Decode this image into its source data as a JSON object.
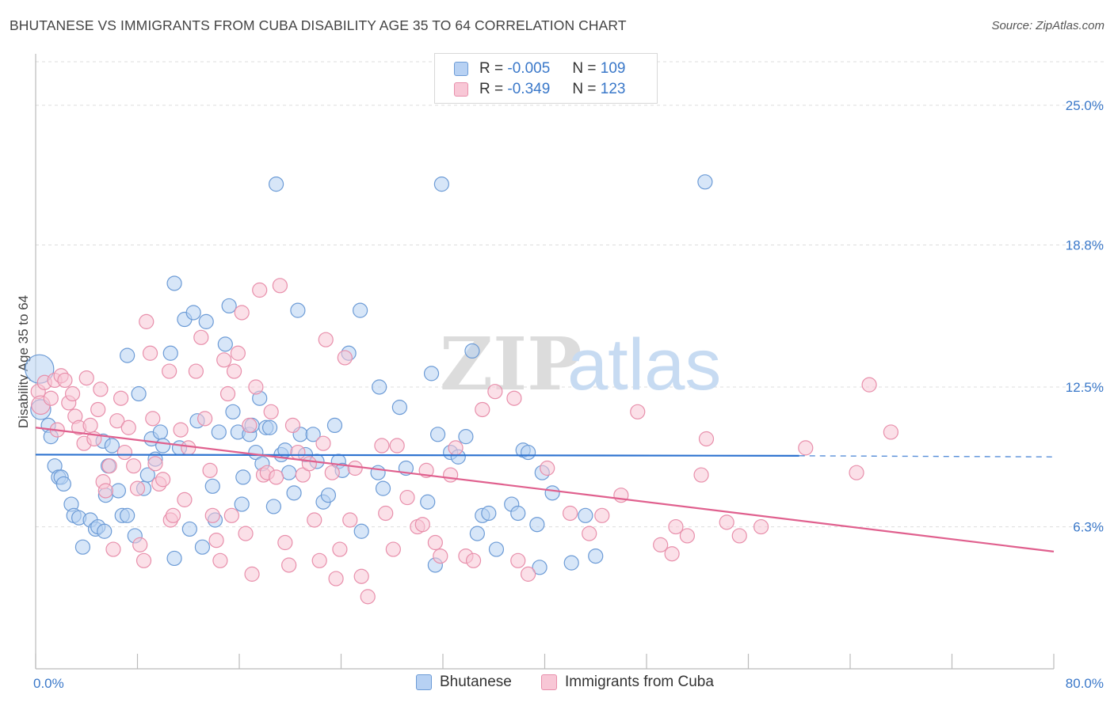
{
  "title": "BHUTANESE VS IMMIGRANTS FROM CUBA DISABILITY AGE 35 TO 64 CORRELATION CHART",
  "source": "Source: ZipAtlas.com",
  "watermark": {
    "zip": "ZIP",
    "atlas": "atlas"
  },
  "legend_top": [
    {
      "r_label": "R =",
      "r_value": "-0.005",
      "n_label": "N =",
      "n_value": "109"
    },
    {
      "r_label": "R =",
      "r_value": "-0.349",
      "n_label": "N =",
      "n_value": "123"
    }
  ],
  "legend_bottom": [
    {
      "label": "Bhutanese"
    },
    {
      "label": "Immigrants from Cuba"
    }
  ],
  "colors": {
    "blue_fill": "#b7d1f3",
    "blue_stroke": "#6c9bd6",
    "blue_line": "#2e73d0",
    "pink_fill": "#f8c7d6",
    "pink_stroke": "#e88fab",
    "pink_line": "#e0608e",
    "axis_text": "#3a78c9",
    "grid": "#dddddd"
  },
  "chart_data": {
    "type": "scatter",
    "title": "BHUTANESE VS IMMIGRANTS FROM CUBA DISABILITY AGE 35 TO 64 CORRELATION CHART",
    "xlabel": "",
    "ylabel": "Disability Age 35 to 64",
    "xlim": [
      0,
      80
    ],
    "ylim": [
      0,
      27
    ],
    "x_tick_labels": [
      "0.0%",
      "80.0%"
    ],
    "y_ticks": [
      6.3,
      12.5,
      18.8,
      25.0
    ],
    "y_tick_labels": [
      "6.3%",
      "12.5%",
      "18.8%",
      "25.0%"
    ],
    "grid": true,
    "legend_position": "top-center",
    "series": [
      {
        "name": "Bhutanese",
        "trendline": {
          "x": [
            0,
            60
          ],
          "y": [
            9.5,
            9.45
          ],
          "dashed_to": [
            80,
            9.4
          ]
        },
        "points": [
          {
            "x": 0.3,
            "y": 13.3,
            "s": 2.0
          },
          {
            "x": 0.4,
            "y": 11.5,
            "s": 1.4
          },
          {
            "x": 1.0,
            "y": 10.8,
            "s": 1.0
          },
          {
            "x": 1.2,
            "y": 10.3,
            "s": 1.0
          },
          {
            "x": 1.5,
            "y": 9.0
          },
          {
            "x": 1.8,
            "y": 8.5
          },
          {
            "x": 2.0,
            "y": 8.5
          },
          {
            "x": 2.2,
            "y": 8.2
          },
          {
            "x": 2.8,
            "y": 7.3
          },
          {
            "x": 3.0,
            "y": 6.8
          },
          {
            "x": 3.4,
            "y": 6.7
          },
          {
            "x": 3.7,
            "y": 5.4
          },
          {
            "x": 4.3,
            "y": 6.6
          },
          {
            "x": 4.7,
            "y": 6.2
          },
          {
            "x": 4.9,
            "y": 6.3
          },
          {
            "x": 5.3,
            "y": 10.1
          },
          {
            "x": 5.4,
            "y": 6.1
          },
          {
            "x": 5.5,
            "y": 7.7
          },
          {
            "x": 5.7,
            "y": 9.0
          },
          {
            "x": 6.0,
            "y": 9.9
          },
          {
            "x": 6.5,
            "y": 7.9
          },
          {
            "x": 6.8,
            "y": 6.8
          },
          {
            "x": 7.2,
            "y": 6.8
          },
          {
            "x": 7.2,
            "y": 13.9
          },
          {
            "x": 7.8,
            "y": 5.9
          },
          {
            "x": 8.1,
            "y": 12.2
          },
          {
            "x": 8.5,
            "y": 8.0
          },
          {
            "x": 8.8,
            "y": 8.6
          },
          {
            "x": 9.1,
            "y": 10.2
          },
          {
            "x": 9.4,
            "y": 9.3
          },
          {
            "x": 9.8,
            "y": 10.5
          },
          {
            "x": 10.0,
            "y": 9.9
          },
          {
            "x": 10.6,
            "y": 14.0
          },
          {
            "x": 10.9,
            "y": 17.1
          },
          {
            "x": 10.9,
            "y": 4.9
          },
          {
            "x": 11.3,
            "y": 9.8
          },
          {
            "x": 11.7,
            "y": 15.5
          },
          {
            "x": 12.1,
            "y": 6.2
          },
          {
            "x": 12.4,
            "y": 15.8
          },
          {
            "x": 12.7,
            "y": 11.0
          },
          {
            "x": 13.1,
            "y": 5.4
          },
          {
            "x": 13.4,
            "y": 15.4
          },
          {
            "x": 13.9,
            "y": 8.1
          },
          {
            "x": 14.1,
            "y": 6.6
          },
          {
            "x": 14.4,
            "y": 10.5
          },
          {
            "x": 14.9,
            "y": 14.4
          },
          {
            "x": 15.2,
            "y": 16.1
          },
          {
            "x": 15.5,
            "y": 11.4
          },
          {
            "x": 15.9,
            "y": 10.5
          },
          {
            "x": 16.2,
            "y": 7.3
          },
          {
            "x": 16.3,
            "y": 8.5
          },
          {
            "x": 16.8,
            "y": 10.4
          },
          {
            "x": 17.0,
            "y": 10.8
          },
          {
            "x": 17.3,
            "y": 9.6
          },
          {
            "x": 17.6,
            "y": 12.0
          },
          {
            "x": 17.8,
            "y": 9.1
          },
          {
            "x": 18.1,
            "y": 10.7
          },
          {
            "x": 18.4,
            "y": 10.7
          },
          {
            "x": 18.7,
            "y": 7.2
          },
          {
            "x": 18.9,
            "y": 21.5
          },
          {
            "x": 19.3,
            "y": 9.5
          },
          {
            "x": 19.6,
            "y": 9.7
          },
          {
            "x": 19.9,
            "y": 8.7
          },
          {
            "x": 20.3,
            "y": 7.8
          },
          {
            "x": 20.6,
            "y": 15.9
          },
          {
            "x": 20.8,
            "y": 10.4
          },
          {
            "x": 21.2,
            "y": 9.5
          },
          {
            "x": 21.8,
            "y": 10.4
          },
          {
            "x": 22.1,
            "y": 9.2
          },
          {
            "x": 22.6,
            "y": 7.4
          },
          {
            "x": 23.0,
            "y": 7.7
          },
          {
            "x": 23.5,
            "y": 10.8
          },
          {
            "x": 23.8,
            "y": 9.2
          },
          {
            "x": 24.1,
            "y": 8.8
          },
          {
            "x": 24.6,
            "y": 14.0
          },
          {
            "x": 25.5,
            "y": 15.9
          },
          {
            "x": 25.6,
            "y": 6.1
          },
          {
            "x": 26.9,
            "y": 8.7
          },
          {
            "x": 27.3,
            "y": 8.0
          },
          {
            "x": 27.0,
            "y": 12.5
          },
          {
            "x": 28.6,
            "y": 11.6
          },
          {
            "x": 29.1,
            "y": 8.9
          },
          {
            "x": 30.8,
            "y": 7.4
          },
          {
            "x": 31.1,
            "y": 13.1
          },
          {
            "x": 31.4,
            "y": 4.6
          },
          {
            "x": 31.6,
            "y": 10.4
          },
          {
            "x": 31.9,
            "y": 21.5
          },
          {
            "x": 32.6,
            "y": 9.6
          },
          {
            "x": 33.2,
            "y": 9.4
          },
          {
            "x": 33.8,
            "y": 10.3
          },
          {
            "x": 34.3,
            "y": 14.1
          },
          {
            "x": 34.7,
            "y": 6.0
          },
          {
            "x": 35.1,
            "y": 6.8
          },
          {
            "x": 35.6,
            "y": 6.9
          },
          {
            "x": 36.2,
            "y": 5.3
          },
          {
            "x": 37.4,
            "y": 7.3
          },
          {
            "x": 37.9,
            "y": 6.9
          },
          {
            "x": 38.3,
            "y": 9.7
          },
          {
            "x": 38.7,
            "y": 9.6
          },
          {
            "x": 39.4,
            "y": 6.4
          },
          {
            "x": 39.6,
            "y": 4.5
          },
          {
            "x": 39.8,
            "y": 8.7
          },
          {
            "x": 40.6,
            "y": 7.8
          },
          {
            "x": 42.1,
            "y": 4.7
          },
          {
            "x": 43.2,
            "y": 6.8
          },
          {
            "x": 44.0,
            "y": 5.0
          },
          {
            "x": 52.6,
            "y": 21.6
          }
        ]
      },
      {
        "name": "Immigrants from Cuba",
        "trendline": {
          "x": [
            0,
            80
          ],
          "y": [
            10.7,
            5.2
          ]
        },
        "points": [
          {
            "x": 0.2,
            "y": 12.3
          },
          {
            "x": 0.4,
            "y": 11.7,
            "s": 1.3
          },
          {
            "x": 0.7,
            "y": 12.7
          },
          {
            "x": 1.2,
            "y": 12.0
          },
          {
            "x": 1.5,
            "y": 12.8
          },
          {
            "x": 1.7,
            "y": 10.6
          },
          {
            "x": 2.0,
            "y": 13.0
          },
          {
            "x": 2.3,
            "y": 12.8
          },
          {
            "x": 2.6,
            "y": 11.8
          },
          {
            "x": 2.9,
            "y": 12.2
          },
          {
            "x": 3.1,
            "y": 11.2
          },
          {
            "x": 3.4,
            "y": 10.7
          },
          {
            "x": 3.8,
            "y": 10.0
          },
          {
            "x": 4.0,
            "y": 12.9
          },
          {
            "x": 4.3,
            "y": 10.8
          },
          {
            "x": 4.6,
            "y": 10.2
          },
          {
            "x": 4.9,
            "y": 11.5
          },
          {
            "x": 5.1,
            "y": 12.4
          },
          {
            "x": 5.3,
            "y": 8.3
          },
          {
            "x": 5.5,
            "y": 7.9
          },
          {
            "x": 5.8,
            "y": 9.0
          },
          {
            "x": 6.1,
            "y": 5.3
          },
          {
            "x": 6.4,
            "y": 11.0
          },
          {
            "x": 6.7,
            "y": 12.0
          },
          {
            "x": 7.0,
            "y": 9.6
          },
          {
            "x": 7.3,
            "y": 10.7
          },
          {
            "x": 7.7,
            "y": 9.0
          },
          {
            "x": 8.0,
            "y": 8.0
          },
          {
            "x": 8.2,
            "y": 5.5
          },
          {
            "x": 8.5,
            "y": 4.8
          },
          {
            "x": 8.7,
            "y": 15.4
          },
          {
            "x": 9.0,
            "y": 14.0
          },
          {
            "x": 9.2,
            "y": 11.1
          },
          {
            "x": 9.4,
            "y": 9.1
          },
          {
            "x": 9.7,
            "y": 8.2
          },
          {
            "x": 10.0,
            "y": 8.4
          },
          {
            "x": 10.5,
            "y": 13.2
          },
          {
            "x": 10.6,
            "y": 6.6
          },
          {
            "x": 10.8,
            "y": 6.8
          },
          {
            "x": 11.4,
            "y": 10.6
          },
          {
            "x": 11.7,
            "y": 7.5
          },
          {
            "x": 12.0,
            "y": 9.8
          },
          {
            "x": 12.6,
            "y": 13.2
          },
          {
            "x": 13.0,
            "y": 14.7
          },
          {
            "x": 13.3,
            "y": 11.1
          },
          {
            "x": 13.7,
            "y": 8.8
          },
          {
            "x": 13.9,
            "y": 6.8
          },
          {
            "x": 14.2,
            "y": 5.7
          },
          {
            "x": 14.5,
            "y": 4.8
          },
          {
            "x": 14.8,
            "y": 13.7
          },
          {
            "x": 15.1,
            "y": 12.2
          },
          {
            "x": 15.4,
            "y": 6.8
          },
          {
            "x": 15.6,
            "y": 13.2
          },
          {
            "x": 15.9,
            "y": 14.0
          },
          {
            "x": 16.2,
            "y": 15.8
          },
          {
            "x": 16.5,
            "y": 6.0
          },
          {
            "x": 16.8,
            "y": 10.8
          },
          {
            "x": 17.0,
            "y": 4.2
          },
          {
            "x": 17.3,
            "y": 12.5
          },
          {
            "x": 17.6,
            "y": 16.8
          },
          {
            "x": 17.9,
            "y": 8.6
          },
          {
            "x": 18.2,
            "y": 8.7
          },
          {
            "x": 18.5,
            "y": 11.4
          },
          {
            "x": 18.9,
            "y": 8.5
          },
          {
            "x": 19.2,
            "y": 17.0
          },
          {
            "x": 19.6,
            "y": 5.6
          },
          {
            "x": 19.9,
            "y": 4.6
          },
          {
            "x": 20.2,
            "y": 10.8
          },
          {
            "x": 20.6,
            "y": 9.6
          },
          {
            "x": 21.0,
            "y": 8.6
          },
          {
            "x": 21.5,
            "y": 9.1
          },
          {
            "x": 21.9,
            "y": 6.6
          },
          {
            "x": 22.3,
            "y": 4.8
          },
          {
            "x": 22.6,
            "y": 10.0
          },
          {
            "x": 22.8,
            "y": 14.6
          },
          {
            "x": 23.3,
            "y": 8.7
          },
          {
            "x": 23.6,
            "y": 4.0
          },
          {
            "x": 23.9,
            "y": 5.3
          },
          {
            "x": 24.3,
            "y": 13.8
          },
          {
            "x": 24.7,
            "y": 6.6
          },
          {
            "x": 25.1,
            "y": 8.9
          },
          {
            "x": 25.6,
            "y": 4.1
          },
          {
            "x": 26.1,
            "y": 3.2
          },
          {
            "x": 27.2,
            "y": 9.9
          },
          {
            "x": 27.5,
            "y": 6.9
          },
          {
            "x": 28.1,
            "y": 5.3
          },
          {
            "x": 28.4,
            "y": 9.9
          },
          {
            "x": 29.2,
            "y": 7.6
          },
          {
            "x": 30.0,
            "y": 6.3
          },
          {
            "x": 30.4,
            "y": 6.4
          },
          {
            "x": 30.7,
            "y": 8.8
          },
          {
            "x": 31.4,
            "y": 5.6
          },
          {
            "x": 31.8,
            "y": 5.0
          },
          {
            "x": 32.6,
            "y": 8.6
          },
          {
            "x": 33.0,
            "y": 9.8
          },
          {
            "x": 33.8,
            "y": 5.0
          },
          {
            "x": 34.4,
            "y": 4.8
          },
          {
            "x": 35.1,
            "y": 11.5
          },
          {
            "x": 36.1,
            "y": 12.3
          },
          {
            "x": 37.6,
            "y": 12.0
          },
          {
            "x": 37.9,
            "y": 4.8
          },
          {
            "x": 38.7,
            "y": 4.2
          },
          {
            "x": 40.2,
            "y": 8.9
          },
          {
            "x": 42.0,
            "y": 6.9
          },
          {
            "x": 43.5,
            "y": 6.0
          },
          {
            "x": 44.5,
            "y": 6.8
          },
          {
            "x": 46.0,
            "y": 7.7
          },
          {
            "x": 47.3,
            "y": 11.4
          },
          {
            "x": 49.1,
            "y": 5.5
          },
          {
            "x": 50.0,
            "y": 5.1
          },
          {
            "x": 50.3,
            "y": 6.3
          },
          {
            "x": 51.2,
            "y": 5.9
          },
          {
            "x": 52.3,
            "y": 8.6
          },
          {
            "x": 52.7,
            "y": 10.2
          },
          {
            "x": 54.3,
            "y": 6.5
          },
          {
            "x": 55.3,
            "y": 5.9
          },
          {
            "x": 57.0,
            "y": 6.3
          },
          {
            "x": 60.5,
            "y": 9.8
          },
          {
            "x": 64.5,
            "y": 8.7
          },
          {
            "x": 65.5,
            "y": 12.6
          },
          {
            "x": 67.2,
            "y": 10.5
          }
        ]
      }
    ]
  }
}
